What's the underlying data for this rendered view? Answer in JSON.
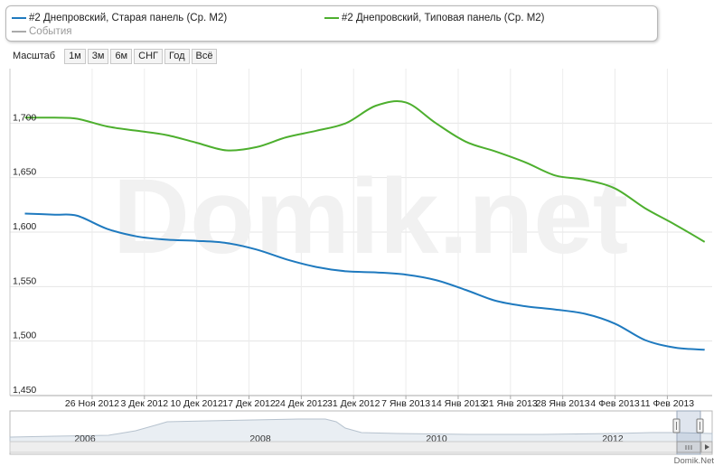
{
  "legend": {
    "items": [
      {
        "label": "#2 Днепровский, Старая панель (Ср. М2)",
        "color": "#1f7abf"
      },
      {
        "label": "#2 Днепровский, Типовая панель (Ср. М2)",
        "color": "#4daf2e"
      },
      {
        "label": "События",
        "color": "#aaaaaa"
      }
    ]
  },
  "toolbar": {
    "label": "Масштаб",
    "buttons": [
      "1м",
      "3м",
      "6м",
      "СНГ",
      "Год",
      "Всё"
    ]
  },
  "watermark": "Domik.net",
  "credit": "Domik.Net",
  "navigator": {
    "years": [
      "2006",
      "2008",
      "2010",
      "2012"
    ]
  },
  "chart_data": {
    "type": "line",
    "x": [
      "2012-11-17",
      "2012-11-21",
      "2012-11-24",
      "2012-11-28",
      "2012-12-02",
      "2012-12-06",
      "2012-12-10",
      "2012-12-14",
      "2012-12-18",
      "2012-12-22",
      "2012-12-26",
      "2012-12-30",
      "2013-01-03",
      "2013-01-07",
      "2013-01-11",
      "2013-01-15",
      "2013-01-19",
      "2013-01-23",
      "2013-01-27",
      "2013-01-31",
      "2013-02-04",
      "2013-02-08",
      "2013-02-12",
      "2013-02-16"
    ],
    "series": [
      {
        "name": "#2 Днепровский, Старая панель (Ср. М2)",
        "color": "#1f7abf",
        "values": [
          1617,
          1616,
          1615,
          1603,
          1596,
          1593,
          1592,
          1590,
          1584,
          1575,
          1568,
          1564,
          1563,
          1561,
          1556,
          1547,
          1537,
          1532,
          1529,
          1525,
          1516,
          1501,
          1494,
          1492
        ]
      },
      {
        "name": "#2 Днепровский, Типовая панель (Ср. М2)",
        "color": "#4daf2e",
        "values": [
          1705,
          1705,
          1704,
          1697,
          1693,
          1689,
          1682,
          1675,
          1678,
          1687,
          1693,
          1700,
          1716,
          1719,
          1700,
          1683,
          1674,
          1664,
          1652,
          1648,
          1640,
          1622,
          1607,
          1591
        ]
      }
    ],
    "x_ticks": [
      "26 Ноя 2012",
      "3 Дек 2012",
      "10 Дек 2012",
      "17 Дек 2012",
      "24 Дек 2012",
      "31 Дек 2012",
      "7 Янв 2013",
      "14 Янв 2013",
      "21 Янв 2013",
      "28 Янв 2013",
      "4 Фев 2013",
      "11 Фев 2013"
    ],
    "y_ticks": [
      "1,450",
      "1,500",
      "1,550",
      "1,600",
      "1,650",
      "1,700"
    ],
    "ylim": [
      1450,
      1750
    ],
    "grid": true,
    "legend_position": "top"
  }
}
